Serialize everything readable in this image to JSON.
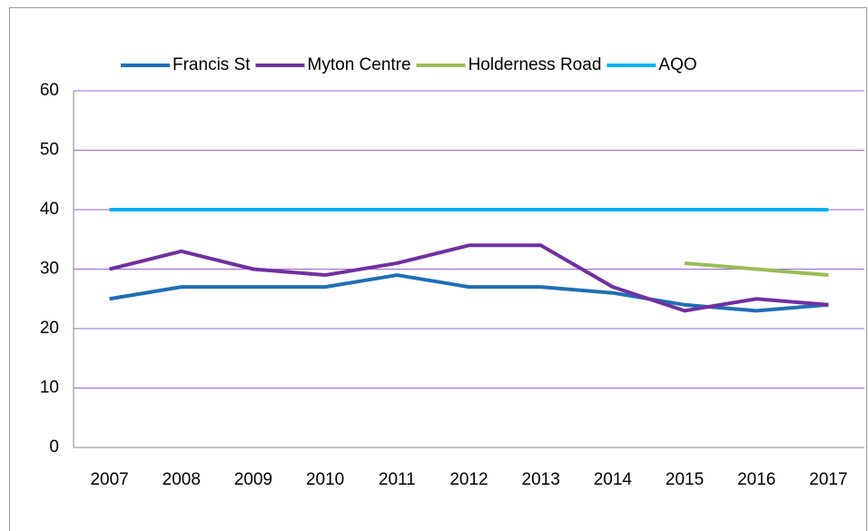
{
  "chart_data": {
    "type": "line",
    "categories": [
      "2007",
      "2008",
      "2009",
      "2010",
      "2011",
      "2012",
      "2013",
      "2014",
      "2015",
      "2016",
      "2017"
    ],
    "series": [
      {
        "name": "Francis St",
        "color": "#1f6fb5",
        "values": [
          25,
          27,
          27,
          27,
          29,
          27,
          27,
          26,
          24,
          23,
          24
        ]
      },
      {
        "name": "Myton Centre",
        "color": "#7030a0",
        "values": [
          30,
          33,
          30,
          29,
          31,
          34,
          34,
          27,
          23,
          25,
          24
        ]
      },
      {
        "name": "Holderness Road",
        "color": "#9bbb59",
        "values": [
          null,
          null,
          null,
          null,
          null,
          null,
          null,
          null,
          31,
          30,
          29
        ]
      },
      {
        "name": "AQO",
        "color": "#00b0f0",
        "values": [
          40,
          40,
          40,
          40,
          40,
          40,
          40,
          40,
          40,
          40,
          40
        ]
      }
    ],
    "ylim": [
      0,
      60
    ],
    "yticks": [
      0,
      10,
      20,
      30,
      40,
      50,
      60
    ],
    "grid": true,
    "legend": "top"
  }
}
